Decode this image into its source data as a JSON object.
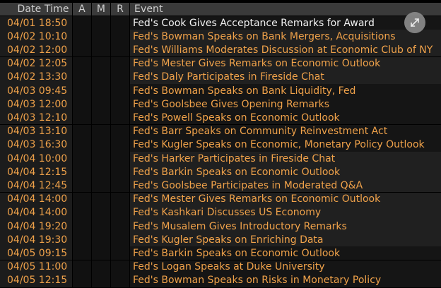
{
  "headers": {
    "date_time": "Date Time",
    "a": "A",
    "m": "M",
    "r": "R",
    "event": "Event"
  },
  "expand_icon": "expand-arrows-icon",
  "colors": {
    "amber": "#f0a24a",
    "white": "#f2f2f2",
    "header_bg": "#3a3a3a"
  },
  "rows": [
    {
      "date": "04/01 18:50",
      "event": "Fed's Cook Gives Acceptance Remarks for Award",
      "highlight": true
    },
    {
      "date": "04/02 10:10",
      "event": "Fed's Bowman Speaks on Bank Mergers, Acquisitions"
    },
    {
      "date": "04/02 12:00",
      "event": "Fed's Williams Moderates Discussion at Economic Club of NY"
    },
    {
      "date": "04/02 12:05",
      "event": "Fed's Mester Gives Remarks on Economic Outlook"
    },
    {
      "date": "04/02 13:30",
      "event": "Fed's Daly Participates in Fireside Chat"
    },
    {
      "date": "04/03 09:45",
      "event": "Fed's Bowman Speaks on Bank Liquidity, Fed"
    },
    {
      "date": "04/03 12:00",
      "event": "Fed's Goolsbee Gives Opening Remarks"
    },
    {
      "date": "04/03 12:10",
      "event": "Fed's Powell Speaks on Economic Outlook"
    },
    {
      "date": "04/03 13:10",
      "event": "Fed's Barr Speaks on Community Reinvestment Act"
    },
    {
      "date": "04/03 16:30",
      "event": "Fed's Kugler Speaks on Economic, Monetary Policy Outlook"
    },
    {
      "date": "04/04 10:00",
      "event": "Fed's Harker Participates in Fireside Chat"
    },
    {
      "date": "04/04 12:15",
      "event": "Fed's Barkin Speaks on Economic Outlook"
    },
    {
      "date": "04/04 12:45",
      "event": "Fed's Goolsbee Participates in Moderated Q&A"
    },
    {
      "date": "04/04 14:00",
      "event": "Fed's Mester Gives Remarks on Economic Outlook"
    },
    {
      "date": "04/04 14:00",
      "event": "Fed's Kashkari Discusses US Economy"
    },
    {
      "date": "04/04 19:20",
      "event": "Fed's Musalem Gives Introductory Remarks"
    },
    {
      "date": "04/04 19:30",
      "event": "Fed's Kugler Speaks on Enriching Data"
    },
    {
      "date": "04/05 09:15",
      "event": "Fed's Barkin Speaks on Economic Outlook"
    },
    {
      "date": "04/05 11:00",
      "event": "Fed's Logan Speaks at Duke University"
    },
    {
      "date": "04/05 12:15",
      "event": "Fed's Bowman Speaks on Risks in Monetary Policy"
    }
  ]
}
